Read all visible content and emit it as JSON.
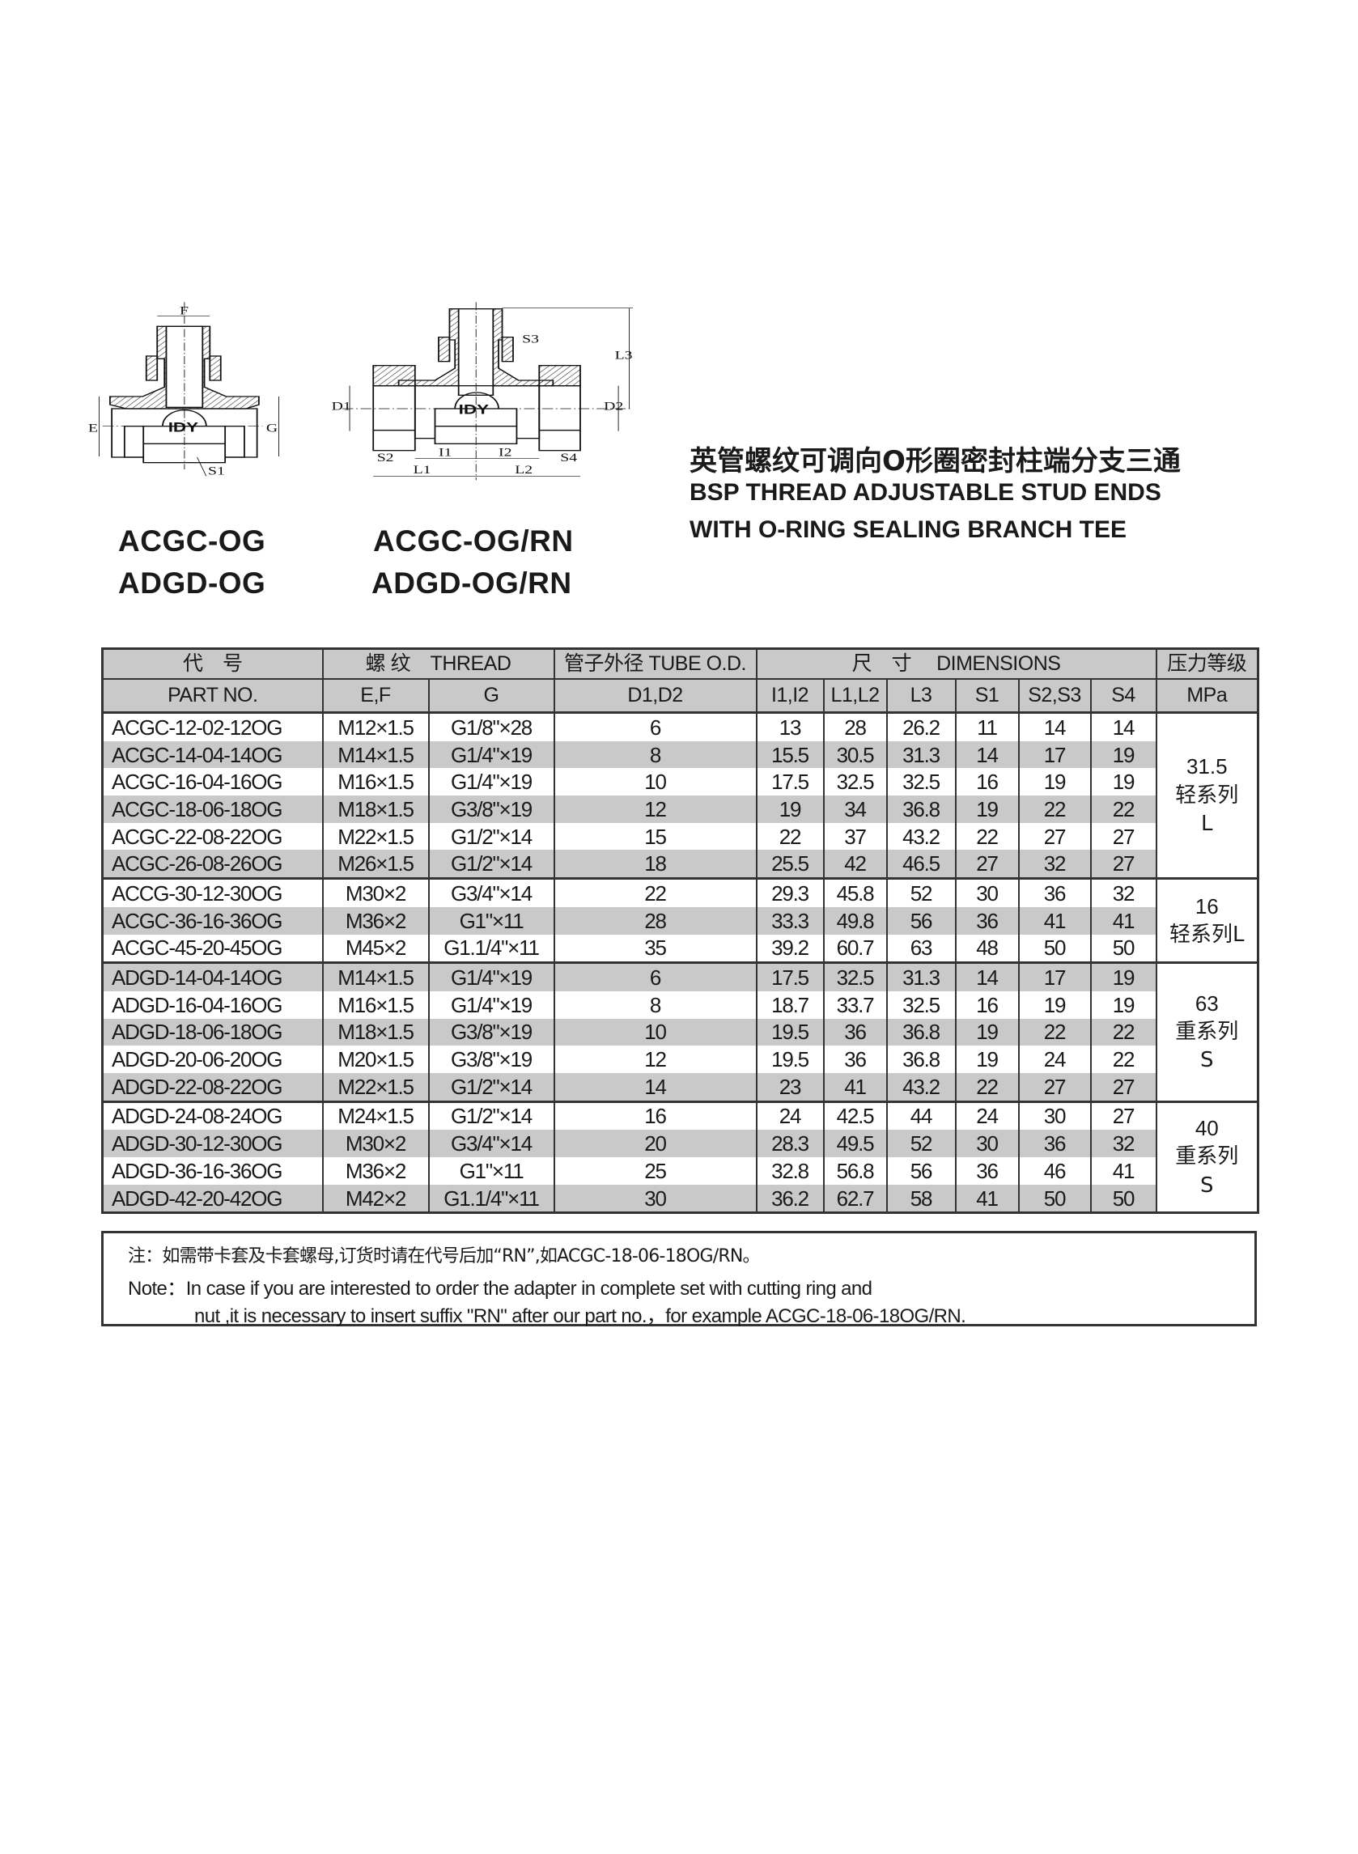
{
  "drawing": {
    "brand_mark": "IDY",
    "left_labels": {
      "F": "F",
      "E": "E",
      "G": "G",
      "S1": "S1"
    },
    "right_labels": {
      "S3": "S3",
      "L3": "L3",
      "D1": "D1",
      "D2": "D2",
      "S2": "S2",
      "S4": "S4",
      "I1": "I1",
      "I2": "I2",
      "L1": "L1",
      "L2": "L2"
    }
  },
  "models": {
    "left": [
      "ACGC-OG",
      "ADGD-OG"
    ],
    "right": [
      "ACGC-OG/RN",
      "ADGD-OG/RN"
    ]
  },
  "title": {
    "cn": "英管螺纹可调向O形圈密封柱端分支三通",
    "en_line1": "BSP THREAD ADJUSTABLE STUD ENDS",
    "en_line2": "WITH O-RING SEALING BRANCH TEE"
  },
  "table": {
    "header_top": {
      "part_cn": "代　号",
      "thread": "螺 纹　THREAD",
      "tube": "管子外径 TUBE O.D.",
      "dimensions": "尺　寸　 DIMENSIONS",
      "pressure_cn": "压力等级"
    },
    "header_sub": {
      "part_en": "PART  NO.",
      "ef": "E,F",
      "g": "G",
      "d": "D1,D2",
      "i": "I1,I2",
      "l": "L1,L2",
      "l3": "L3",
      "s1": "S1",
      "s23": "S2,S3",
      "s4": "S4",
      "unit": "MPa"
    },
    "rows": [
      [
        "ACGC-12-02-12OG",
        "M12×1.5",
        "G1/8\"×28",
        "6",
        "13",
        "28",
        "26.2",
        "11",
        "14",
        "14"
      ],
      [
        "ACGC-14-04-14OG",
        "M14×1.5",
        "G1/4\"×19",
        "8",
        "15.5",
        "30.5",
        "31.3",
        "14",
        "17",
        "19"
      ],
      [
        "ACGC-16-04-16OG",
        "M16×1.5",
        "G1/4\"×19",
        "10",
        "17.5",
        "32.5",
        "32.5",
        "16",
        "19",
        "19"
      ],
      [
        "ACGC-18-06-18OG",
        "M18×1.5",
        "G3/8\"×19",
        "12",
        "19",
        "34",
        "36.8",
        "19",
        "22",
        "22"
      ],
      [
        "ACGC-22-08-22OG",
        "M22×1.5",
        "G1/2\"×14",
        "15",
        "22",
        "37",
        "43.2",
        "22",
        "27",
        "27"
      ],
      [
        "ACGC-26-08-26OG",
        "M26×1.5",
        "G1/2\"×14",
        "18",
        "25.5",
        "42",
        "46.5",
        "27",
        "32",
        "27"
      ],
      [
        "ACCG-30-12-30OG",
        "M30×2",
        "G3/4\"×14",
        "22",
        "29.3",
        "45.8",
        "52",
        "30",
        "36",
        "32"
      ],
      [
        "ACGC-36-16-36OG",
        "M36×2",
        "G1\"×11",
        "28",
        "33.3",
        "49.8",
        "56",
        "36",
        "41",
        "41"
      ],
      [
        "ACGC-45-20-45OG",
        "M45×2",
        "G1.1/4\"×11",
        "35",
        "39.2",
        "60.7",
        "63",
        "48",
        "50",
        "50"
      ],
      [
        "ADGD-14-04-14OG",
        "M14×1.5",
        "G1/4\"×19",
        "6",
        "17.5",
        "32.5",
        "31.3",
        "14",
        "17",
        "19"
      ],
      [
        "ADGD-16-04-16OG",
        "M16×1.5",
        "G1/4\"×19",
        "8",
        "18.7",
        "33.7",
        "32.5",
        "16",
        "19",
        "19"
      ],
      [
        "ADGD-18-06-18OG",
        "M18×1.5",
        "G3/8\"×19",
        "10",
        "19.5",
        "36",
        "36.8",
        "19",
        "22",
        "22"
      ],
      [
        "ADGD-20-06-20OG",
        "M20×1.5",
        "G3/8\"×19",
        "12",
        "19.5",
        "36",
        "36.8",
        "19",
        "24",
        "22"
      ],
      [
        "ADGD-22-08-22OG",
        "M22×1.5",
        "G1/2\"×14",
        "14",
        "23",
        "41",
        "43.2",
        "22",
        "27",
        "27"
      ],
      [
        "ADGD-24-08-24OG",
        "M24×1.5",
        "G1/2\"×14",
        "16",
        "24",
        "42.5",
        "44",
        "24",
        "30",
        "27"
      ],
      [
        "ADGD-30-12-30OG",
        "M30×2",
        "G3/4\"×14",
        "20",
        "28.3",
        "49.5",
        "52",
        "30",
        "36",
        "32"
      ],
      [
        "ADGD-36-16-36OG",
        "M36×2",
        "G1\"×11",
        "25",
        "32.8",
        "56.8",
        "56",
        "36",
        "46",
        "41"
      ],
      [
        "ADGD-42-20-42OG",
        "M42×2",
        "G1.1/4\"×11",
        "30",
        "36.2",
        "62.7",
        "58",
        "41",
        "50",
        "50"
      ]
    ],
    "pressure_groups": [
      {
        "start": 0,
        "span": 6,
        "lines": [
          "31.5",
          "轻系列",
          "L"
        ]
      },
      {
        "start": 6,
        "span": 3,
        "lines": [
          "16",
          "轻系列L"
        ]
      },
      {
        "start": 9,
        "span": 5,
        "lines": [
          "63",
          "重系列",
          "S"
        ]
      },
      {
        "start": 14,
        "span": 4,
        "lines": [
          "40",
          "重系列",
          "S"
        ]
      }
    ],
    "row_shading_color": "#c9c9c9"
  },
  "note": {
    "cn": "注：如需带卡套及卡套螺母,订货时请在代号后加“RN”,如ACGC-18-06-18OG/RN。",
    "en_line1": "Note：In case if you are interested to order the adapter in complete set with cutting ring and",
    "en_line2": "nut ,it is necessary to insert suffix \"RN\" after our part no.，for example ACGC-18-06-18OG/RN."
  }
}
